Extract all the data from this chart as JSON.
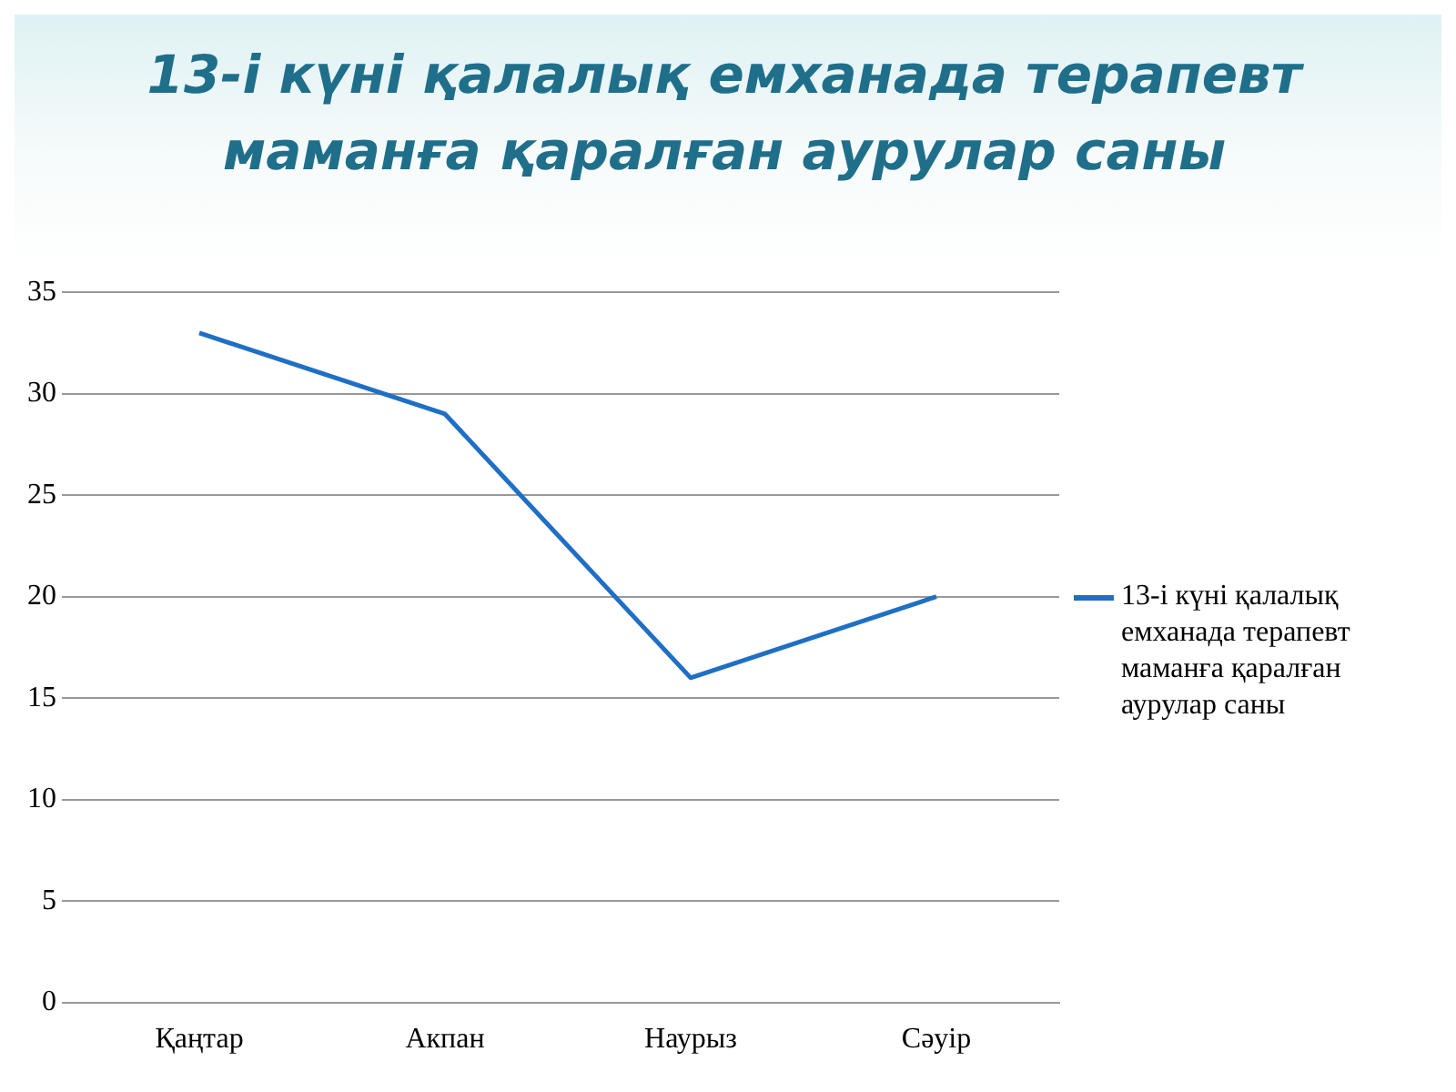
{
  "chart_data": {
    "type": "line",
    "title": "13-і күні қалалық емханада терапевт маманға қаралған аурулар саны",
    "categories": [
      "Қаңтар",
      "Акпан",
      "Наурыз",
      "Сәуір"
    ],
    "series": [
      {
        "name": "13-і күні қалалық емханада терапевт маманға қаралған аурулар саны",
        "color": "#1f6fc5",
        "values": [
          33,
          29,
          16,
          20
        ]
      }
    ],
    "ylim": [
      0,
      35
    ],
    "yticks": [
      0,
      5,
      10,
      15,
      20,
      25,
      30,
      35
    ],
    "grid": "y",
    "legend": "right",
    "marker": "none"
  }
}
